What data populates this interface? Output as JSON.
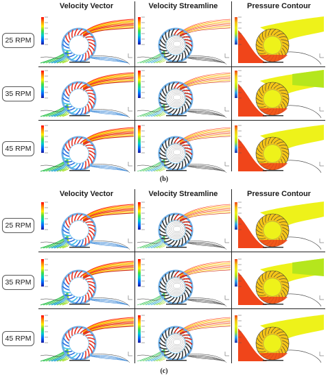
{
  "columns": [
    "Velocity Vector",
    "Velocity Streamline",
    "Pressure Contour"
  ],
  "groups": [
    {
      "caption": "(b)",
      "rows": [
        {
          "rpm_label": "25 RPM"
        },
        {
          "rpm_label": "35 RPM"
        },
        {
          "rpm_label": "45 RPM"
        }
      ]
    },
    {
      "caption": "(c)",
      "rows": [
        {
          "rpm_label": "25 RPM"
        },
        {
          "rpm_label": "35 RPM"
        },
        {
          "rpm_label": "45 RPM"
        }
      ]
    }
  ],
  "colors": {
    "velocity_scale": [
      "#ff0000",
      "#ff8800",
      "#ffee00",
      "#44dd44",
      "#00cccc",
      "#0066ff",
      "#1a1aa0"
    ],
    "pressure_high": "#f0451a",
    "pressure_mid": "#f5c518",
    "pressure_low": "#eef21a",
    "pressure_green": "#b5e61d"
  }
}
